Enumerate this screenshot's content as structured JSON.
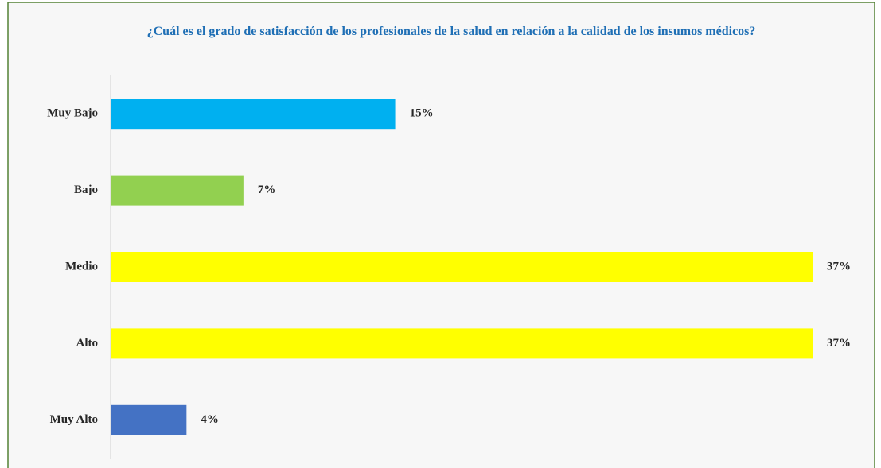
{
  "chart_data": {
    "type": "barh",
    "title": "¿Cuál es el grado de satisfacción de los profesionales de la salud en relación a la calidad de los insumos médicos?",
    "categories": [
      "Muy Bajo",
      "Bajo",
      "Medio",
      "Alto",
      "Muy Alto"
    ],
    "values": [
      15,
      7,
      37,
      37,
      4
    ],
    "value_labels": [
      "15%",
      "7%",
      "37%",
      "37%",
      "4%"
    ],
    "colors": [
      "#00b0f0",
      "#92d050",
      "#ffff00",
      "#ffff00",
      "#4472c4"
    ]
  }
}
